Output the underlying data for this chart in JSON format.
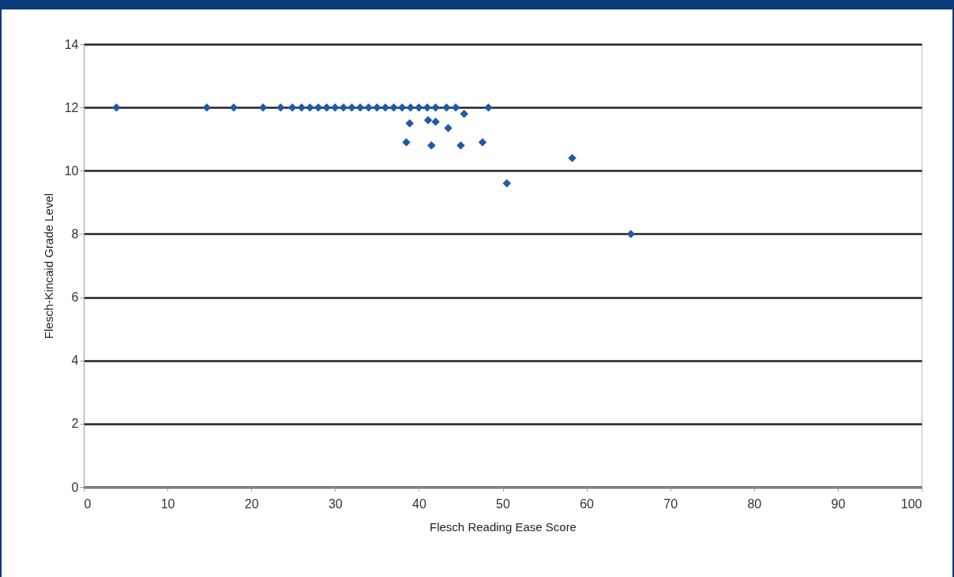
{
  "chart_data": {
    "type": "scatter",
    "xlabel": "Flesch Reading Ease Score",
    "ylabel": "Flesch-Kincaid Grade Level",
    "x": [
      3.9,
      14.7,
      17.9,
      21.4,
      23.5,
      24.9,
      26,
      27,
      28,
      29,
      30,
      31,
      32,
      33,
      34,
      35,
      36,
      37,
      38,
      39,
      40,
      41,
      42,
      43.3,
      44.4,
      45.4,
      48.3,
      38.9,
      41.1,
      42,
      43.5,
      38.5,
      41.5,
      45,
      47.6,
      58.3,
      50.5,
      65.3
    ],
    "series": [
      {
        "color": "#1f5aa6",
        "values": [
          12,
          12,
          12,
          12,
          12,
          12,
          12,
          12,
          12,
          12,
          12,
          12,
          12,
          12,
          12,
          12,
          12,
          12,
          12,
          12,
          12,
          12,
          12,
          12,
          12,
          11.8,
          12,
          11.5,
          11.6,
          11.55,
          11.35,
          10.9,
          10.8,
          10.8,
          10.9,
          10.4,
          9.6,
          8
        ]
      }
    ],
    "xlim": [
      0,
      100
    ],
    "xticks": [
      0,
      10,
      20,
      30,
      40,
      50,
      60,
      70,
      80,
      90,
      100
    ],
    "ylim": [
      0,
      14
    ],
    "yticks": [
      0,
      2,
      4,
      6,
      8,
      10,
      12,
      14
    ],
    "grid": "y",
    "marker": "diamond"
  }
}
